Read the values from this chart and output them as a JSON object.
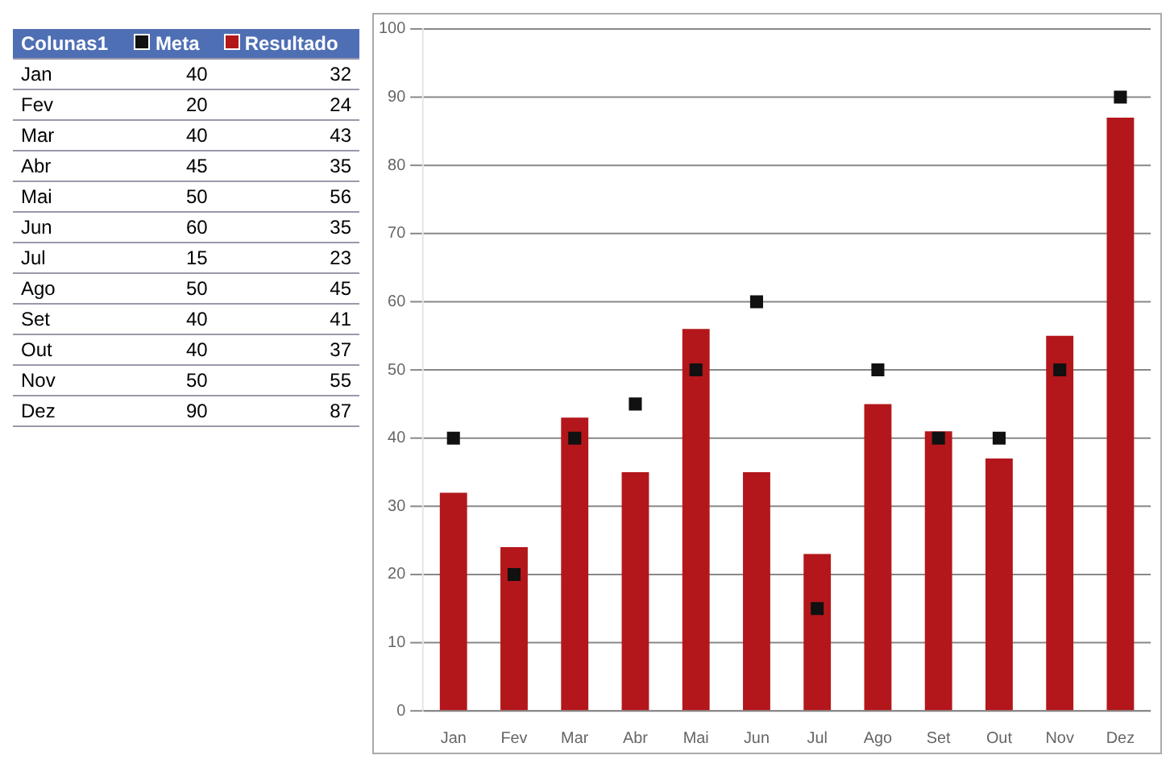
{
  "chart_data": [
    {
      "type": "other",
      "annotations": [
        "Colunas1"
      ],
      "data_labels": true,
      "categories": [
        "Jan",
        "Fev",
        "Mar",
        "Abr",
        "Mai",
        "Jun",
        "Jul",
        "Ago",
        "Set",
        "Out",
        "Nov",
        "Dez"
      ],
      "series": [
        {
          "name": "Meta",
          "color": "#111111",
          "values": [
            40,
            20,
            40,
            45,
            50,
            60,
            15,
            50,
            40,
            40,
            50,
            90
          ]
        },
        {
          "name": "Resultado",
          "color": "#b3171b",
          "values": [
            32,
            24,
            43,
            35,
            56,
            35,
            23,
            45,
            41,
            37,
            55,
            87
          ]
        }
      ]
    },
    {
      "type": "bar",
      "categories": [
        "Jan",
        "Fev",
        "Mar",
        "Abr",
        "Mai",
        "Jun",
        "Jul",
        "Ago",
        "Set",
        "Out",
        "Nov",
        "Dez"
      ],
      "series": [
        {
          "type": "scatter",
          "x": [
            "Jan",
            "Fev",
            "Mar",
            "Abr",
            "Mai",
            "Jun",
            "Jul",
            "Ago",
            "Set",
            "Out",
            "Nov",
            "Dez"
          ],
          "color": "#111111",
          "marker": "square",
          "values": [
            40,
            20,
            40,
            45,
            50,
            60,
            15,
            50,
            40,
            40,
            50,
            90
          ]
        },
        {
          "type": "bar",
          "color": "#b3171b",
          "values": [
            32,
            24,
            43,
            35,
            56,
            35,
            23,
            45,
            41,
            37,
            55,
            87
          ]
        }
      ],
      "ylim": [
        0,
        100
      ],
      "yticks": [
        0,
        10,
        20,
        30,
        40,
        50,
        60,
        70,
        80,
        90,
        100
      ],
      "grid": "y",
      "legend": false
    }
  ]
}
